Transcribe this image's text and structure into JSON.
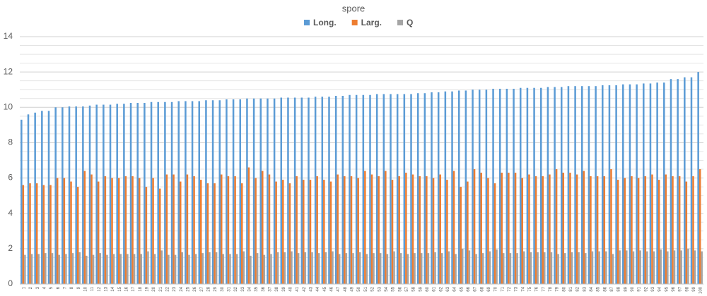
{
  "chart_data": {
    "type": "bar",
    "title": "spore",
    "categories": [
      "1",
      "2",
      "3",
      "4",
      "5",
      "6",
      "7",
      "8",
      "9",
      "10",
      "11",
      "12",
      "13",
      "14",
      "15",
      "16",
      "17",
      "18",
      "19",
      "20",
      "21",
      "22",
      "23",
      "24",
      "25",
      "26",
      "27",
      "28",
      "29",
      "30",
      "31",
      "32",
      "33",
      "34",
      "35",
      "36",
      "37",
      "38",
      "39",
      "40",
      "41",
      "42",
      "43",
      "44",
      "45",
      "46",
      "47",
      "48",
      "49",
      "50",
      "51",
      "52",
      "53",
      "54",
      "55",
      "56",
      "57",
      "58",
      "59",
      "60",
      "61",
      "62",
      "63",
      "64",
      "65",
      "66",
      "67",
      "68",
      "69",
      "70",
      "71",
      "72",
      "73",
      "74",
      "75",
      "76",
      "77",
      "78",
      "79",
      "80",
      "81",
      "82",
      "83",
      "84",
      "85",
      "86",
      "87",
      "88",
      "89",
      "90",
      "91",
      "92",
      "93",
      "94",
      "95",
      "96",
      "97",
      "98",
      "99",
      "100"
    ],
    "series": [
      {
        "name": "Long.",
        "color": "#5b9bd5",
        "values": [
          9.3,
          9.6,
          9.7,
          9.8,
          9.8,
          10.0,
          10.0,
          10.05,
          10.05,
          10.05,
          10.1,
          10.15,
          10.15,
          10.15,
          10.2,
          10.2,
          10.25,
          10.25,
          10.25,
          10.3,
          10.3,
          10.3,
          10.3,
          10.35,
          10.35,
          10.35,
          10.35,
          10.4,
          10.4,
          10.4,
          10.45,
          10.45,
          10.45,
          10.5,
          10.5,
          10.5,
          10.5,
          10.5,
          10.55,
          10.55,
          10.55,
          10.55,
          10.55,
          10.6,
          10.6,
          10.6,
          10.65,
          10.65,
          10.7,
          10.7,
          10.7,
          10.7,
          10.75,
          10.75,
          10.75,
          10.75,
          10.75,
          10.75,
          10.8,
          10.8,
          10.85,
          10.85,
          10.9,
          10.9,
          10.95,
          10.95,
          11.0,
          11.0,
          11.0,
          11.05,
          11.05,
          11.05,
          11.05,
          11.1,
          11.1,
          11.1,
          11.1,
          11.15,
          11.15,
          11.15,
          11.2,
          11.2,
          11.2,
          11.2,
          11.2,
          11.25,
          11.25,
          11.25,
          11.3,
          11.3,
          11.3,
          11.35,
          11.35,
          11.4,
          11.4,
          11.6,
          11.6,
          11.7,
          11.7,
          12.0
        ]
      },
      {
        "name": "Larg.",
        "color": "#ed7d31",
        "values": [
          5.6,
          5.7,
          5.7,
          5.6,
          5.6,
          6.0,
          6.0,
          5.8,
          5.5,
          6.4,
          6.2,
          5.8,
          6.1,
          6.0,
          6.0,
          6.1,
          6.1,
          6.0,
          5.5,
          6.0,
          5.4,
          6.2,
          6.2,
          5.8,
          6.2,
          6.1,
          5.9,
          5.7,
          5.7,
          6.2,
          6.1,
          6.1,
          5.7,
          6.6,
          6.0,
          6.4,
          6.2,
          5.8,
          5.9,
          5.7,
          6.1,
          5.9,
          5.9,
          6.1,
          5.9,
          5.8,
          6.2,
          6.1,
          6.1,
          6.0,
          6.4,
          6.2,
          6.1,
          6.4,
          5.9,
          6.1,
          6.3,
          6.2,
          6.1,
          6.1,
          6.0,
          6.2,
          5.9,
          6.4,
          5.5,
          5.8,
          6.5,
          6.3,
          6.0,
          5.7,
          6.3,
          6.3,
          6.3,
          6.0,
          6.2,
          6.1,
          6.1,
          6.2,
          6.5,
          6.3,
          6.3,
          6.2,
          6.4,
          6.1,
          6.1,
          6.1,
          6.5,
          5.9,
          6.0,
          6.1,
          6.0,
          6.1,
          6.2,
          5.9,
          6.2,
          6.1,
          6.1,
          5.8,
          6.1,
          6.5
        ]
      },
      {
        "name": "Q",
        "color": "#a5a5a5",
        "values": [
          1.65,
          1.7,
          1.7,
          1.75,
          1.75,
          1.65,
          1.7,
          1.75,
          1.8,
          1.6,
          1.65,
          1.75,
          1.65,
          1.7,
          1.7,
          1.7,
          1.7,
          1.7,
          1.85,
          1.7,
          1.9,
          1.65,
          1.65,
          1.8,
          1.65,
          1.7,
          1.75,
          1.8,
          1.8,
          1.7,
          1.7,
          1.7,
          1.85,
          1.6,
          1.75,
          1.65,
          1.7,
          1.8,
          1.8,
          1.85,
          1.75,
          1.8,
          1.8,
          1.75,
          1.8,
          1.85,
          1.7,
          1.75,
          1.75,
          1.8,
          1.7,
          1.75,
          1.75,
          1.7,
          1.85,
          1.75,
          1.7,
          1.75,
          1.75,
          1.75,
          1.8,
          1.75,
          1.85,
          1.7,
          2.0,
          1.9,
          1.7,
          1.75,
          1.85,
          1.95,
          1.75,
          1.75,
          1.75,
          1.85,
          1.8,
          1.8,
          1.8,
          1.8,
          1.7,
          1.75,
          1.8,
          1.8,
          1.75,
          1.85,
          1.85,
          1.85,
          1.7,
          1.9,
          1.9,
          1.85,
          1.9,
          1.85,
          1.85,
          1.95,
          1.85,
          1.9,
          1.9,
          2.0,
          1.9,
          1.85
        ]
      }
    ],
    "ylim": [
      0,
      14
    ],
    "yticks": [
      0,
      2,
      4,
      6,
      8,
      10,
      12,
      14
    ],
    "grid": true,
    "legend": "top"
  }
}
